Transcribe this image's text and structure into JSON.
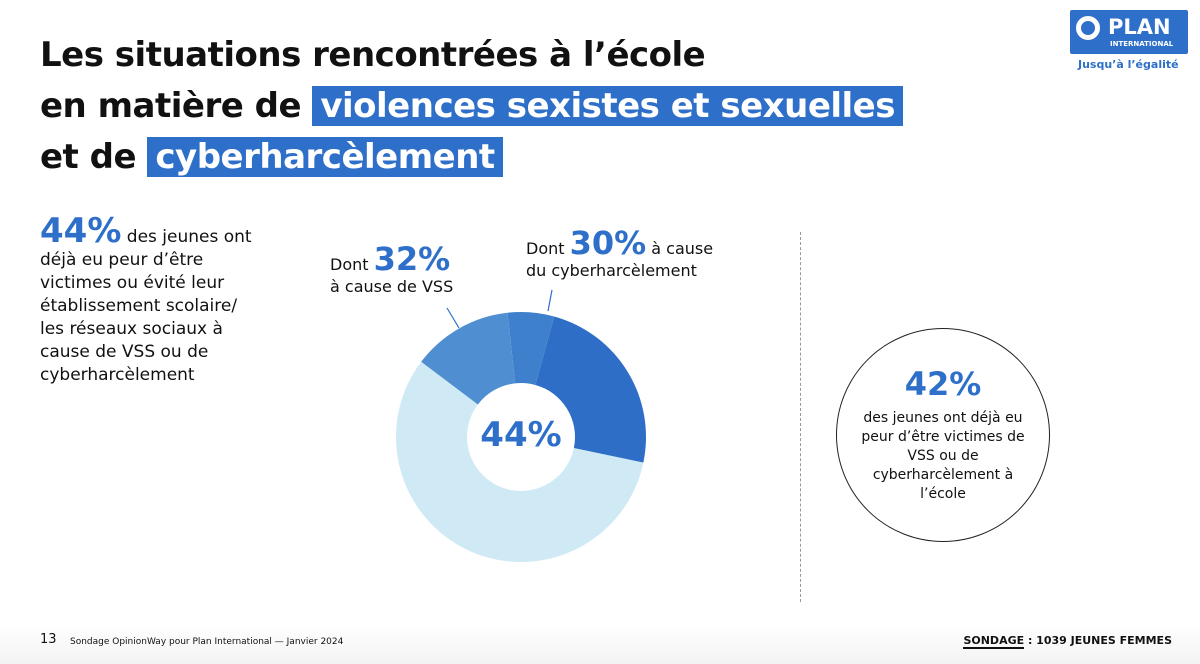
{
  "title": {
    "line1": "Les situations rencontrées à l’école",
    "line2_prefix": "en matière de ",
    "line2_highlight": "violences  sexistes et sexuelles",
    "line3_prefix": "et de ",
    "line3_highlight": "cyberharcèlement"
  },
  "logo": {
    "name": "PLAN",
    "sub": "INTERNATIONAL",
    "tagline": "Jusqu’à l’égalité"
  },
  "left_stat": {
    "value": "44%",
    "text": " des jeunes ont déjà eu peur d’être victimes ou évité leur établissement scolaire/ les réseaux sociaux à cause de VSS ou de cyberharcèlement"
  },
  "label_vss": {
    "prefix": "Dont ",
    "value": "32%",
    "suffix": "à cause de VSS"
  },
  "label_cyber": {
    "prefix": "Dont ",
    "value": "30%",
    "suffix": " à cause",
    "suffix2": "du cyberharcèlement"
  },
  "right_stat": {
    "value": "42%",
    "text": "des jeunes ont déjà eu peur d’être victimes de VSS ou de cyberharcèlement à l’école"
  },
  "footer": {
    "page": "13",
    "source": "Sondage OpinionWay pour Plan International — Janvier 2024",
    "sample_label": "SONDAGE",
    "sample_value": " : 1039 JEUNES FEMMES"
  },
  "colors": {
    "accent": "#2e6fc9"
  },
  "chart_data": {
    "type": "pie",
    "donut": true,
    "center_label": "44%",
    "start_angle_deg": -53,
    "slices": [
      {
        "value": 13,
        "color": "#4f8fd1"
      },
      {
        "value": 6,
        "color": "#3e80cc"
      },
      {
        "value": 24,
        "color": "#2e6ec7"
      },
      {
        "value": 57,
        "color": "#cfeaf5"
      }
    ]
  }
}
